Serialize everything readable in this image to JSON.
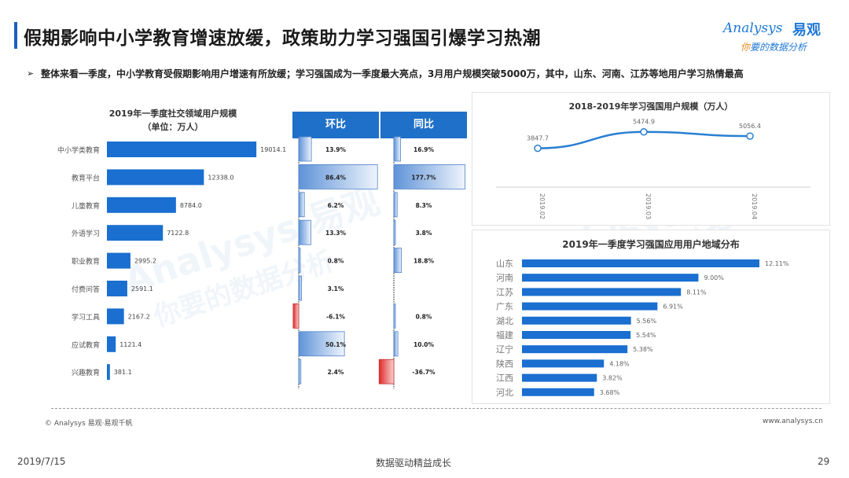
{
  "header": {
    "title": "假期影响中小学教育增速放缓，政策助力学习强国引爆学习热潮",
    "logo_en": "Analysys",
    "logo_cn": "易观",
    "logo_slogan_first": "你",
    "logo_slogan_rest": "要的数据分析",
    "watermark_en": "Analysys 易观",
    "watermark_slogan": "你要的数据分析"
  },
  "summary": {
    "marker": "➢",
    "text": "整体来看一季度，中小学教育受假期影响用户增速有所放缓；学习强国成为一季度最大亮点，3月用户规模突破5000万，其中，山东、河南、江苏等地用户学习热情最高"
  },
  "colors": {
    "accent": "#1f70c8",
    "bar": "#1a6fd0",
    "negative": "#e03030",
    "line": "#2a7fd2"
  },
  "chart_data": [
    {
      "type": "bar",
      "orientation": "horizontal",
      "title": "2019年一季度社交领域用户规模",
      "subtitle": "（单位：万人）",
      "categories": [
        "中小学类教育",
        "教育平台",
        "儿童教育",
        "外语学习",
        "职业教育",
        "付费问答",
        "学习工具",
        "应试教育",
        "兴趣教育"
      ],
      "values": [
        19014.1,
        12338.0,
        8784.0,
        7122.8,
        2995.2,
        2591.1,
        2167.2,
        1121.4,
        381.1
      ],
      "value_labels": [
        "19014.1",
        "12338.0",
        "8784.0",
        "7122.8",
        "2995.2",
        "2591.1",
        "2167.2",
        "1121.4",
        "381.1"
      ],
      "xlim": [
        0,
        20000
      ]
    },
    {
      "type": "bar",
      "orientation": "horizontal",
      "title": "环比",
      "categories": [
        "中小学类教育",
        "教育平台",
        "儿童教育",
        "外语学习",
        "职业教育",
        "付费问答",
        "学习工具",
        "应试教育",
        "兴趣教育"
      ],
      "values": [
        13.9,
        86.4,
        6.2,
        13.3,
        0.8,
        3.1,
        -6.1,
        50.1,
        2.4
      ],
      "value_labels": [
        "13.9%",
        "86.4%",
        "6.2%",
        "13.3%",
        "0.8%",
        "3.1%",
        "-6.1%",
        "50.1%",
        "2.4%"
      ],
      "unit": "%"
    },
    {
      "type": "bar",
      "orientation": "horizontal",
      "title": "同比",
      "categories": [
        "中小学类教育",
        "教育平台",
        "儿童教育",
        "外语学习",
        "职业教育",
        "付费问答",
        "学习工具",
        "应试教育",
        "兴趣教育"
      ],
      "values": [
        16.9,
        177.7,
        8.3,
        3.8,
        18.8,
        null,
        0.8,
        10.0,
        -36.7
      ],
      "value_labels": [
        "16.9%",
        "177.7%",
        "8.3%",
        "3.8%",
        "18.8%",
        "",
        "0.8%",
        "10.0%",
        "-36.7%"
      ],
      "unit": "%"
    },
    {
      "type": "line",
      "title": "2018-2019年学习强国用户规模（万人）",
      "x": [
        "2019.02",
        "2019.03",
        "2019.04"
      ],
      "y": [
        3847.7,
        5474.9,
        5056.4
      ],
      "value_labels": [
        "3847.7",
        "5474.9",
        "5056.4"
      ],
      "ylim": [
        0,
        12000
      ]
    },
    {
      "type": "bar",
      "orientation": "horizontal",
      "title": "2019年一季度学习强国应用用户地域分布",
      "categories": [
        "山东",
        "河南",
        "江苏",
        "广东",
        "湖北",
        "福建",
        "辽宁",
        "陕西",
        "江西",
        "河北"
      ],
      "values": [
        12.11,
        9.0,
        8.11,
        6.91,
        5.56,
        5.54,
        5.38,
        4.18,
        3.82,
        3.68
      ],
      "value_labels": [
        "12.11%",
        "9.00%",
        "8.11%",
        "6.91%",
        "5.56%",
        "5.54%",
        "5.38%",
        "4.18%",
        "3.82%",
        "3.68%"
      ],
      "unit": "%"
    }
  ],
  "footer": {
    "copyright": "© Analysys 易观·易观千帆",
    "site": "www.analysys.cn",
    "date": "2019/7/15",
    "slogan": "数据驱动精益成长",
    "page": "29"
  }
}
